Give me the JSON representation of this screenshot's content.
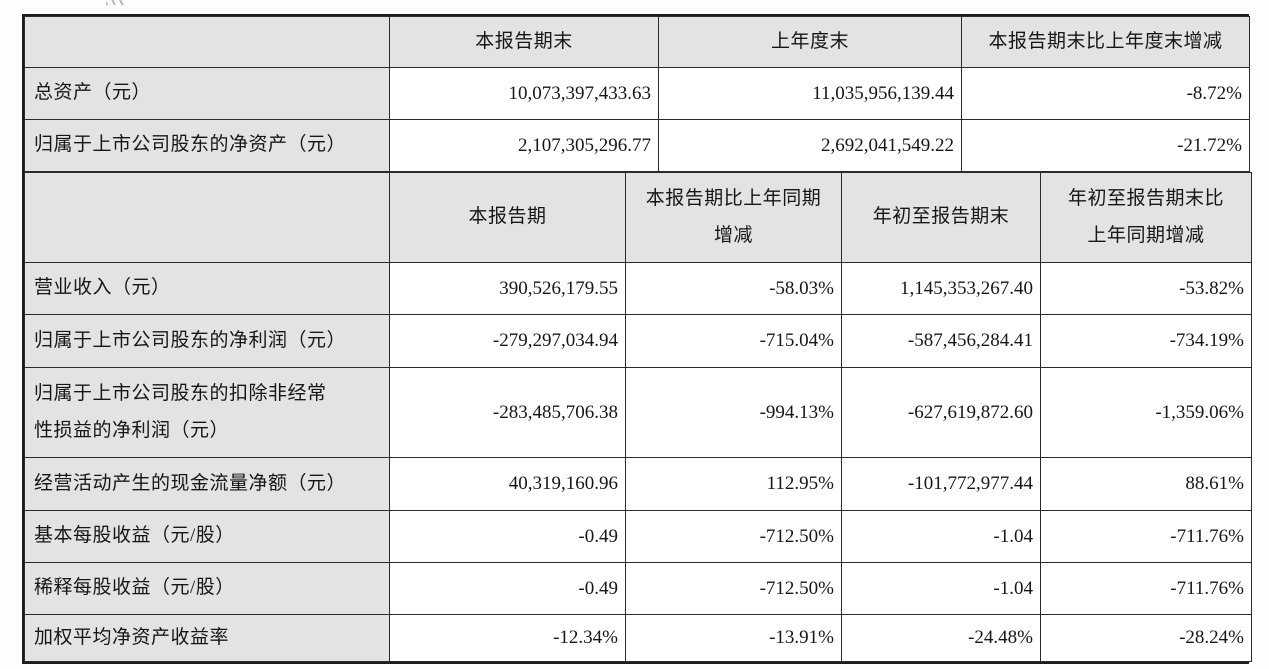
{
  "colors": {
    "header_bg": "#e3e3e3",
    "cell_bg": "#ffffff",
    "border": "#2b2b2b"
  },
  "table_top": {
    "headers": [
      "",
      "本报告期末",
      "上年度末",
      "本报告期末比上年度末增减"
    ],
    "rows": [
      {
        "label": "总资产（元）",
        "values": [
          "10,073,397,433.63",
          "11,035,956,139.44",
          "-8.72%"
        ]
      },
      {
        "label": "归属于上市公司股东的净资产（元）",
        "values": [
          "2,107,305,296.77",
          "2,692,041,549.22",
          "-21.72%"
        ]
      }
    ]
  },
  "table_bottom": {
    "headers": [
      "",
      "本报告期",
      "本报告期比上年同期\n增减",
      "年初至报告期末",
      "年初至报告期末比\n上年同期增减"
    ],
    "rows": [
      {
        "label": "营业收入（元）",
        "values": [
          "390,526,179.55",
          "-58.03%",
          "1,145,353,267.40",
          "-53.82%"
        ]
      },
      {
        "label": "归属于上市公司股东的净利润（元）",
        "values": [
          "-279,297,034.94",
          "-715.04%",
          "-587,456,284.41",
          "-734.19%"
        ]
      },
      {
        "label": "归属于上市公司股东的扣除非经常\n性损益的净利润（元）",
        "values": [
          "-283,485,706.38",
          "-994.13%",
          "-627,619,872.60",
          "-1,359.06%"
        ]
      },
      {
        "label": "经营活动产生的现金流量净额（元）",
        "values": [
          "40,319,160.96",
          "112.95%",
          "-101,772,977.44",
          "88.61%"
        ]
      },
      {
        "label": "基本每股收益（元/股）",
        "values": [
          "-0.49",
          "-712.50%",
          "-1.04",
          "-711.76%"
        ]
      },
      {
        "label": "稀释每股收益（元/股）",
        "values": [
          "-0.49",
          "-712.50%",
          "-1.04",
          "-711.76%"
        ]
      },
      {
        "label": "加权平均净资产收益率",
        "values": [
          "-12.34%",
          "-13.91%",
          "-24.48%",
          "-28.24%"
        ]
      }
    ]
  }
}
